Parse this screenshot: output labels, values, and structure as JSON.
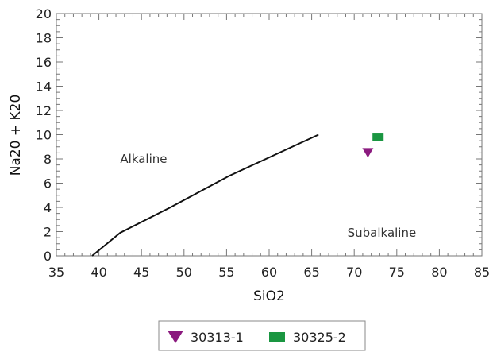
{
  "chart_data": {
    "type": "scatter",
    "xlabel": "SiO2",
    "ylabel": "Na20 + K20",
    "xlim": [
      35,
      85
    ],
    "ylim": [
      0,
      20
    ],
    "x_ticks": [
      35,
      40,
      45,
      50,
      55,
      60,
      65,
      70,
      75,
      80,
      85
    ],
    "y_ticks": [
      0,
      2,
      4,
      6,
      8,
      10,
      12,
      14,
      16,
      18,
      20
    ],
    "grid": false,
    "boundary_line": {
      "x": [
        39.2,
        42.5,
        48.4,
        55.3,
        65.8
      ],
      "y": [
        0,
        1.9,
        4.0,
        6.6,
        10.0
      ]
    },
    "region_labels": [
      {
        "text": "Alkaline",
        "x": 42.5,
        "y": 8.0
      },
      {
        "text": "Subalkaline",
        "x": 69.2,
        "y": 1.9
      }
    ],
    "series": [
      {
        "name": "30313-1",
        "marker": "triangle-down",
        "color": "#8b1a7f",
        "points": [
          {
            "x": 71.6,
            "y": 8.5
          }
        ]
      },
      {
        "name": "30325-2",
        "marker": "rect",
        "color": "#1a9641",
        "points": [
          {
            "x": 72.8,
            "y": 9.8
          }
        ]
      }
    ],
    "legend_position": "bottom"
  }
}
